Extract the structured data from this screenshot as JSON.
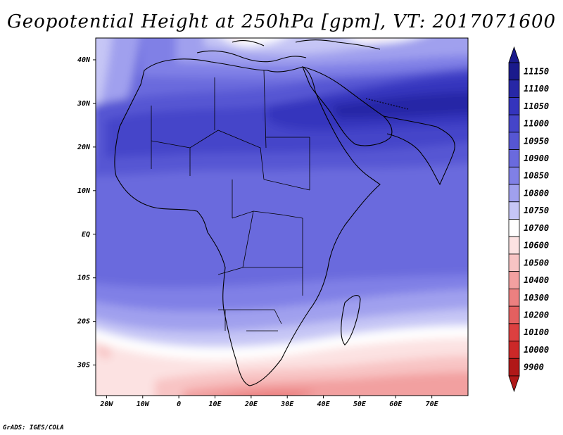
{
  "title": "Geopotential Height at 250hPa [gpm], VT: 2017071600",
  "credit": "GrADS: IGES/COLA",
  "map": {
    "lon_range": [
      -23,
      80
    ],
    "lat_range": [
      -37,
      45
    ],
    "lon_ticks": [
      {
        "value": -20,
        "label": "20W"
      },
      {
        "value": -10,
        "label": "10W"
      },
      {
        "value": 0,
        "label": "0"
      },
      {
        "value": 10,
        "label": "10E"
      },
      {
        "value": 20,
        "label": "20E"
      },
      {
        "value": 30,
        "label": "30E"
      },
      {
        "value": 40,
        "label": "40E"
      },
      {
        "value": 50,
        "label": "50E"
      },
      {
        "value": 60,
        "label": "60E"
      },
      {
        "value": 70,
        "label": "70E"
      }
    ],
    "lat_ticks": [
      {
        "value": 40,
        "label": "40N"
      },
      {
        "value": 30,
        "label": "30N"
      },
      {
        "value": 20,
        "label": "20N"
      },
      {
        "value": 10,
        "label": "10N"
      },
      {
        "value": 0,
        "label": "EQ"
      },
      {
        "value": -10,
        "label": "10S"
      },
      {
        "value": -20,
        "label": "20S"
      },
      {
        "value": -30,
        "label": "30S"
      }
    ]
  },
  "colorbar": {
    "levels": [
      {
        "label": "11150",
        "color": "#1a1a8c"
      },
      {
        "label": "11100",
        "color": "#2727a6"
      },
      {
        "label": "11050",
        "color": "#3434bd"
      },
      {
        "label": "11000",
        "color": "#4545c9"
      },
      {
        "label": "10950",
        "color": "#5656d3"
      },
      {
        "label": "10900",
        "color": "#6a6add"
      },
      {
        "label": "10850",
        "color": "#8080e6"
      },
      {
        "label": "10800",
        "color": "#a0a0ee"
      },
      {
        "label": "10750",
        "color": "#c6c6f5"
      },
      {
        "label": "10700",
        "color": "#ffffff"
      },
      {
        "label": "10600",
        "color": "#fce2e2"
      },
      {
        "label": "10500",
        "color": "#f8c4c4"
      },
      {
        "label": "10400",
        "color": "#f2a0a0"
      },
      {
        "label": "10300",
        "color": "#ec8080"
      },
      {
        "label": "10200",
        "color": "#e46060"
      },
      {
        "label": "10100",
        "color": "#dc4040"
      },
      {
        "label": "10000",
        "color": "#cc2828"
      },
      {
        "label": "9900",
        "color": "#b01818"
      }
    ],
    "top_arrow_color": "#1a1a8c",
    "bottom_arrow_color": "#b01818"
  }
}
